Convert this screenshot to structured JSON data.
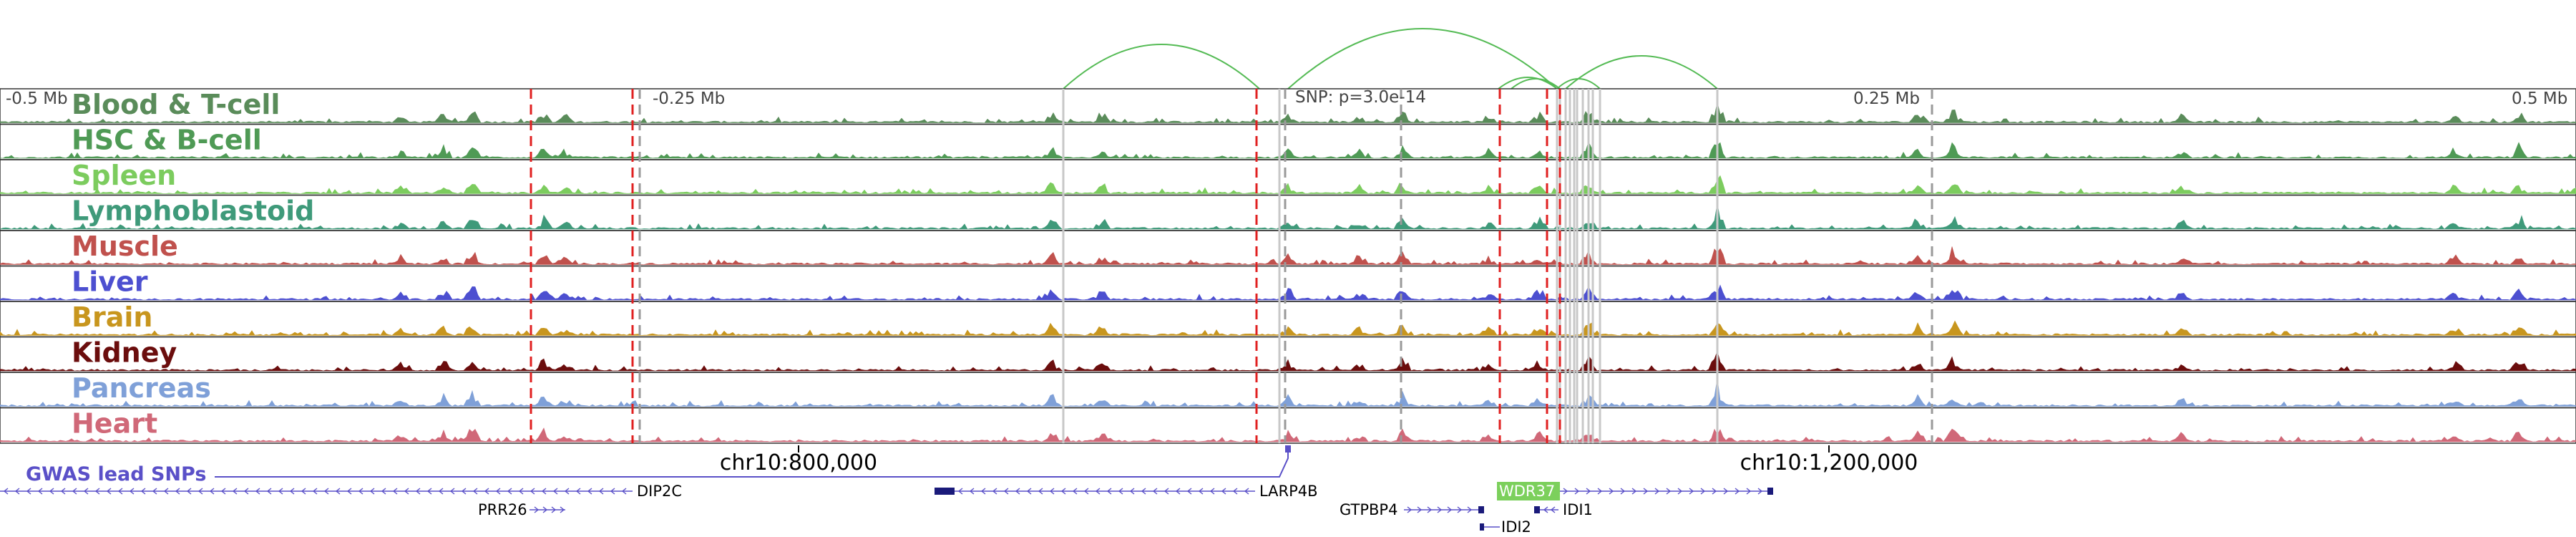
{
  "axis": {
    "left_label": "-0.5 Mb",
    "mid_left_label": "-0.25 Mb",
    "snp_label": "SNP: p=3.0e-14",
    "mid_right_label": "0.25 Mb",
    "right_label": "0.5 Mb",
    "coord_label_1": "chr10:800,000",
    "coord_label_2": "chr10:1,200,000"
  },
  "gwas_label": "GWAS lead SNPs",
  "tracks": [
    {
      "name": "Blood & T-cell",
      "color": "#5a8c5a"
    },
    {
      "name": "HSC & B-cell",
      "color": "#4f9a55"
    },
    {
      "name": "Spleen",
      "color": "#7ccc5e"
    },
    {
      "name": "Lymphoblastoid",
      "color": "#3f9a7a"
    },
    {
      "name": "Muscle",
      "color": "#c0514d"
    },
    {
      "name": "Liver",
      "color": "#4c4fd0"
    },
    {
      "name": "Brain",
      "color": "#c8961e"
    },
    {
      "name": "Kidney",
      "color": "#6b0d0d"
    },
    {
      "name": "Pancreas",
      "color": "#7fa0d8"
    },
    {
      "name": "Heart",
      "color": "#d06878"
    }
  ],
  "genes": [
    {
      "name": "DIP2C"
    },
    {
      "name": "PRR26"
    },
    {
      "name": "LARP4B"
    },
    {
      "name": "GTPBP4"
    },
    {
      "name": "WDR37",
      "highlighted": true
    },
    {
      "name": "IDI1"
    },
    {
      "name": "IDI2"
    }
  ],
  "colors": {
    "red_line": "#e02020",
    "gray_line": "#c8c8c8",
    "arc": "#55bb55",
    "gene": "#1a1a7a",
    "gwas": "#5a50c8",
    "highlight": "#7cd05c"
  }
}
